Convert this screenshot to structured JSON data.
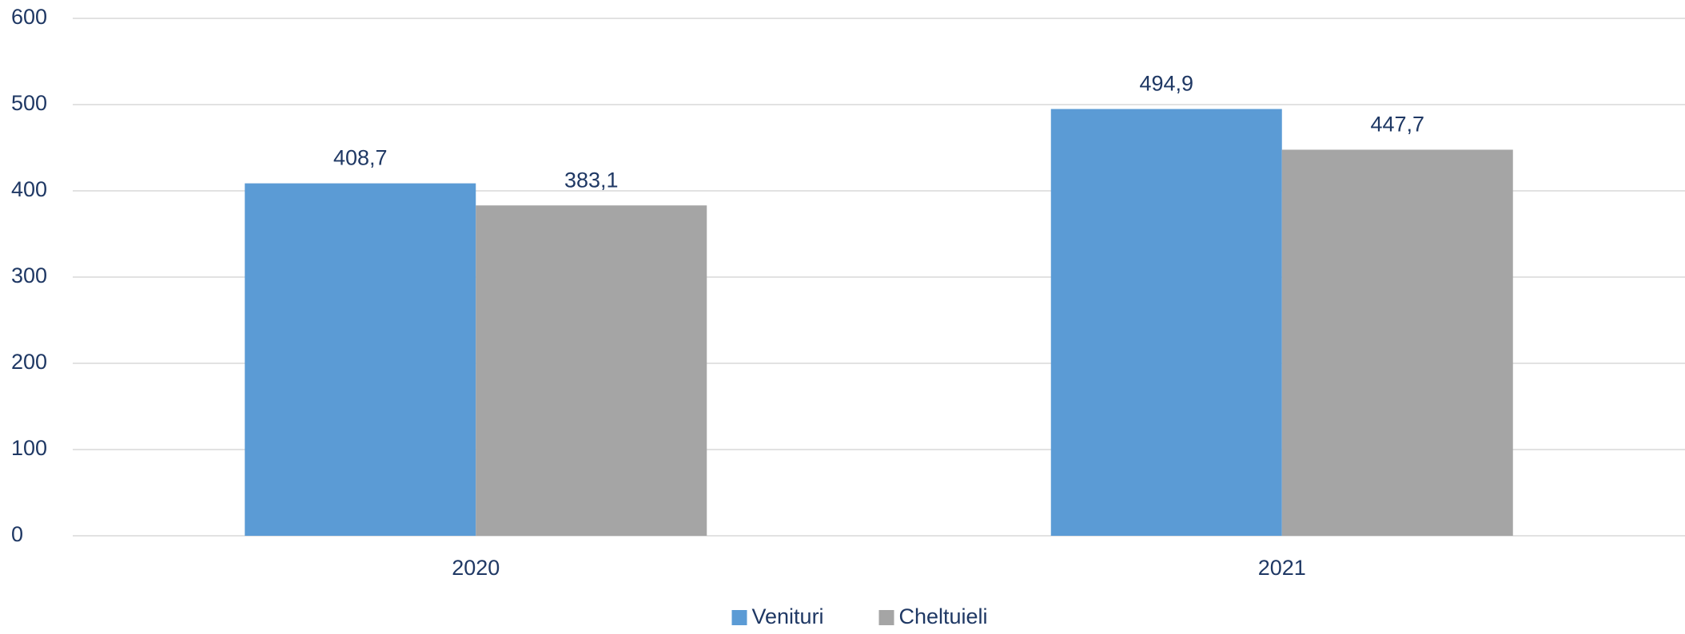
{
  "chart_data": {
    "type": "bar",
    "categories": [
      "2020",
      "2021"
    ],
    "series": [
      {
        "name": "Venituri",
        "color": "#5b9bd5",
        "values": [
          408.7,
          494.9
        ],
        "value_labels": [
          "408,7",
          "494,9"
        ]
      },
      {
        "name": "Cheltuieli",
        "color": "#a5a5a5",
        "values": [
          383.1,
          447.7
        ],
        "value_labels": [
          "383,1",
          "447,7"
        ]
      }
    ],
    "ylim": [
      0,
      600
    ],
    "yticks": [
      0,
      100,
      200,
      300,
      400,
      500,
      600
    ],
    "grid": true,
    "legend": "bottom"
  }
}
